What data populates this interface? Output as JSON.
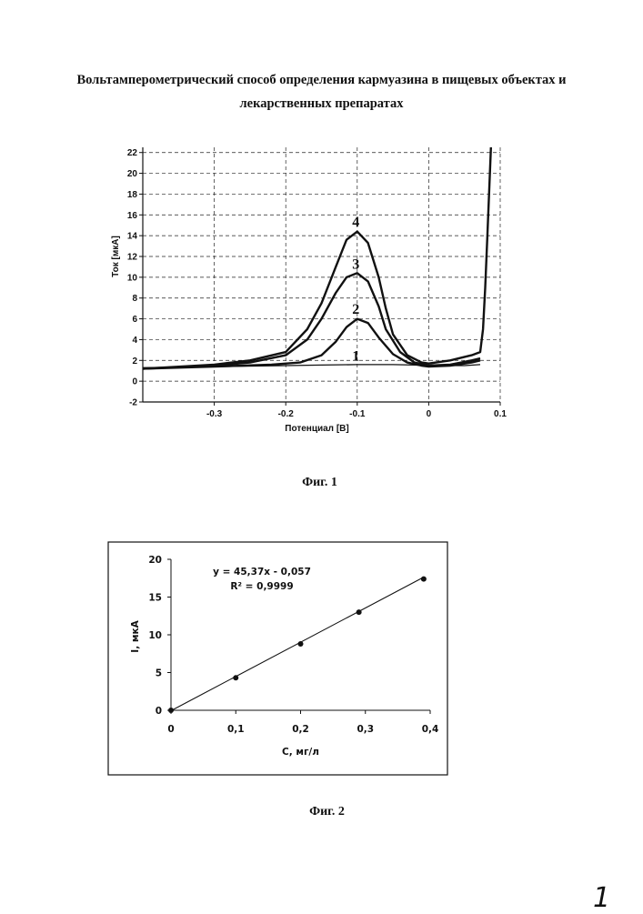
{
  "title": {
    "line1": "Вольтамперометрический способ определения кармуазина в пищевых объектах и",
    "line2": "лекарственных препаратах"
  },
  "page_number": "1",
  "chart_data": [
    {
      "type": "line",
      "caption": "Фиг. 1",
      "xlabel": "Потенциал [В]",
      "ylabel": "Ток [мкА]",
      "xlim": [
        -0.4,
        0.1
      ],
      "ylim": [
        -2,
        22.5
      ],
      "xticks": [
        -0.3,
        -0.2,
        -0.1,
        0,
        0.1
      ],
      "xtick_labels": [
        "-0.3",
        "-0.2",
        "-0.1",
        "0",
        "0.1"
      ],
      "yticks": [
        -2,
        0,
        2,
        4,
        6,
        8,
        10,
        12,
        14,
        16,
        18,
        20,
        22
      ],
      "ytick_labels": [
        "-2",
        "0",
        "2",
        "4",
        "6",
        "8",
        "10",
        "12",
        "14",
        "16",
        "18",
        "20",
        "22"
      ],
      "grid": true,
      "series": [
        {
          "name": "1",
          "x": [
            -0.4,
            -0.3,
            -0.2,
            -0.15,
            -0.1,
            -0.05,
            -0.02,
            0,
            0.05,
            0.072
          ],
          "y": [
            1.3,
            1.4,
            1.5,
            1.55,
            1.6,
            1.6,
            1.55,
            1.5,
            1.5,
            1.6
          ]
        },
        {
          "name": "2",
          "x": [
            -0.4,
            -0.3,
            -0.22,
            -0.18,
            -0.15,
            -0.13,
            -0.115,
            -0.1,
            -0.085,
            -0.07,
            -0.05,
            -0.03,
            -0.01,
            0,
            0.03,
            0.06,
            0.072
          ],
          "y": [
            1.2,
            1.4,
            1.6,
            1.8,
            2.5,
            3.8,
            5.2,
            6.0,
            5.6,
            4.2,
            2.6,
            1.8,
            1.5,
            1.4,
            1.5,
            1.8,
            2.0
          ]
        },
        {
          "name": "3",
          "x": [
            -0.4,
            -0.3,
            -0.25,
            -0.2,
            -0.17,
            -0.15,
            -0.13,
            -0.115,
            -0.1,
            -0.085,
            -0.07,
            -0.06,
            -0.04,
            -0.02,
            0,
            0.03,
            0.06,
            0.072
          ],
          "y": [
            1.2,
            1.5,
            1.8,
            2.5,
            4.0,
            6.0,
            8.5,
            10.0,
            10.4,
            9.6,
            7.2,
            5.0,
            2.8,
            1.8,
            1.5,
            1.6,
            2.0,
            2.2
          ]
        },
        {
          "name": "4",
          "x": [
            -0.4,
            -0.3,
            -0.25,
            -0.2,
            -0.17,
            -0.15,
            -0.13,
            -0.115,
            -0.1,
            -0.085,
            -0.07,
            -0.06,
            -0.05,
            -0.03,
            -0.01,
            0,
            0.03,
            0.06,
            0.072,
            0.076,
            0.079,
            0.082,
            0.087
          ],
          "y": [
            1.2,
            1.6,
            2.0,
            2.8,
            5.0,
            7.5,
            11.0,
            13.6,
            14.4,
            13.3,
            10.0,
            7.0,
            4.5,
            2.5,
            1.8,
            1.7,
            2.0,
            2.5,
            2.8,
            5.0,
            9.0,
            14.0,
            22.5
          ]
        }
      ],
      "annotations": [
        {
          "text": "1",
          "x": -0.102,
          "y": 2.0
        },
        {
          "text": "2",
          "x": -0.102,
          "y": 6.5
        },
        {
          "text": "3",
          "x": -0.102,
          "y": 10.8
        },
        {
          "text": "4",
          "x": -0.102,
          "y": 14.9
        }
      ]
    },
    {
      "type": "scatter",
      "caption": "Фиг. 2",
      "xlabel": "С, мг/л",
      "ylabel": "I, мкА",
      "xlim": [
        0,
        0.4
      ],
      "ylim": [
        0,
        20
      ],
      "xticks": [
        0,
        0.1,
        0.2,
        0.3,
        0.4
      ],
      "xtick_labels": [
        "0",
        "0,1",
        "0,2",
        "0,3",
        "0,4"
      ],
      "yticks": [
        0,
        5,
        10,
        15,
        20
      ],
      "ytick_labels": [
        "0",
        "5",
        "10",
        "15",
        "20"
      ],
      "grid": false,
      "points": [
        {
          "x": 0,
          "y": 0
        },
        {
          "x": 0.1,
          "y": 4.3
        },
        {
          "x": 0.2,
          "y": 8.8
        },
        {
          "x": 0.29,
          "y": 13.0
        },
        {
          "x": 0.39,
          "y": 17.4
        }
      ],
      "trendline": {
        "slope": 45.37,
        "intercept": -0.057,
        "x": [
          0,
          0.39
        ]
      },
      "equation": "y = 45,37x - 0,057",
      "r_squared": "R² = 0,9999"
    }
  ]
}
